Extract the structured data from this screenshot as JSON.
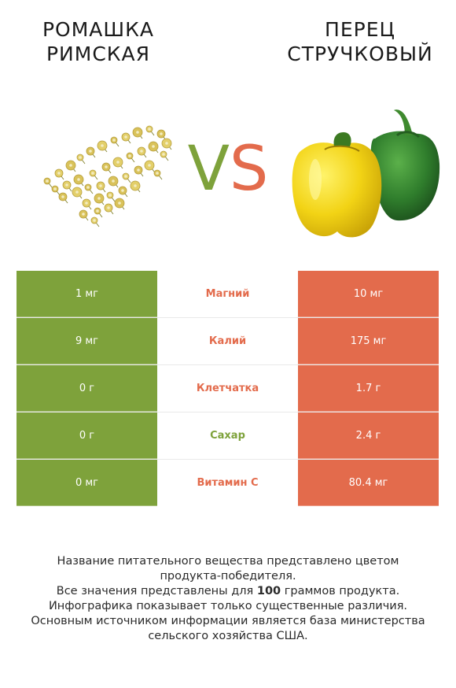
{
  "left_item": {
    "title": "РОМАШКА\nРИМСКАЯ",
    "image": "chamomile-flowers"
  },
  "right_item": {
    "title": "ПЕРЕЦ\nСТРУЧКОВЫЙ",
    "image": "bell-peppers"
  },
  "vs": {
    "v": "V",
    "s": "S"
  },
  "colors": {
    "left": "#7ea23b",
    "right": "#e36b4c"
  },
  "rows": [
    {
      "name": "Магний",
      "left": "1 мг",
      "right": "10 мг",
      "winner_color": "#e36b4c"
    },
    {
      "name": "Калий",
      "left": "9 мг",
      "right": "175 мг",
      "winner_color": "#e36b4c"
    },
    {
      "name": "Клетчатка",
      "left": "0 г",
      "right": "1.7 г",
      "winner_color": "#e36b4c"
    },
    {
      "name": "Сахар",
      "left": "0 г",
      "right": "2.4 г",
      "winner_color": "#7ea23b"
    },
    {
      "name": "Витамин С",
      "left": "0 мг",
      "right": "80.4 мг",
      "winner_color": "#e36b4c"
    }
  ],
  "footnote": {
    "line1": "Название питательного вещества представлено цветом",
    "line2": "продукта-победителя.",
    "line3_pre": "Все значения представлены для ",
    "line3_bold": "100",
    "line3_post": " граммов продукта.",
    "line4": "Инфографика показывает только существенные различия.",
    "line5": "Основным источником информации является база министерства",
    "line6": "сельского хозяйства США."
  }
}
